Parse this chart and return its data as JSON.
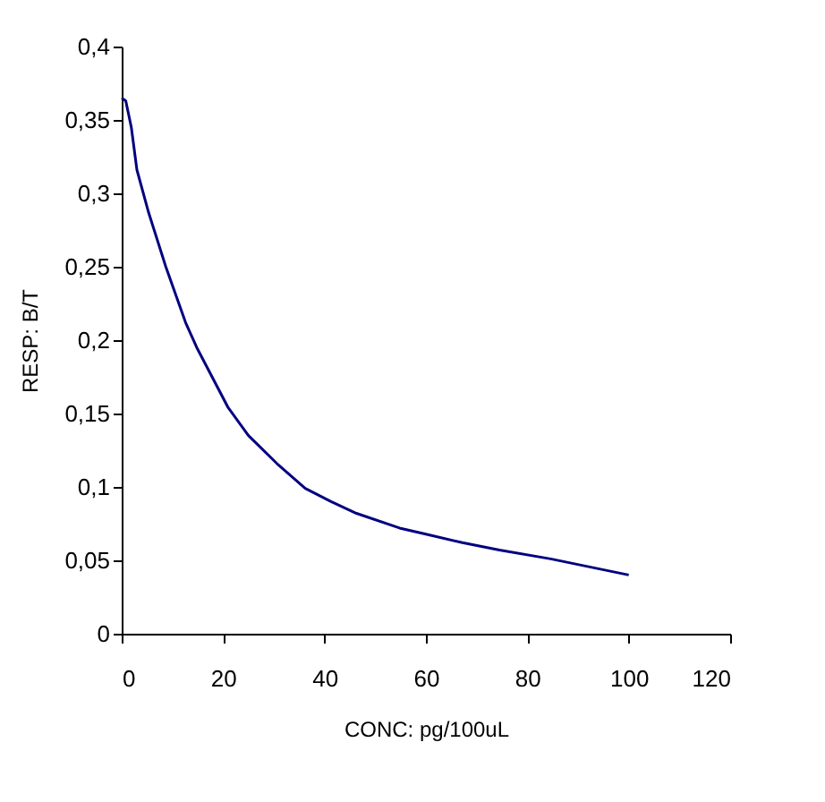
{
  "chart_data": {
    "type": "line",
    "xlabel": "CONC: pg/100uL",
    "ylabel": "RESP: B/T",
    "x": [
      0,
      0.8,
      1.9,
      3.0,
      5.3,
      8.7,
      12.6,
      14.8,
      21,
      25,
      30.6,
      36.2,
      41.3,
      46.3,
      54.8,
      59.8,
      67.2,
      74.5,
      84.6,
      100
    ],
    "series": [
      {
        "color": "#000080",
        "values": [
          0.365,
          0.363,
          0.345,
          0.316,
          0.287,
          0.25,
          0.212,
          0.195,
          0.154,
          0.135,
          0.116,
          0.099,
          0.09,
          0.082,
          0.072,
          0.068,
          0.062,
          0.057,
          0.051,
          0.04
        ]
      }
    ],
    "xlim": [
      0,
      120
    ],
    "xticks": [
      0,
      20,
      40,
      60,
      80,
      100,
      120
    ],
    "ylim": [
      0,
      0.4
    ],
    "yticks": [
      0,
      {
        "value": 0.05,
        "label": "0,05"
      },
      {
        "value": 0.1,
        "label": "0,1"
      },
      {
        "value": 0.15,
        "label": "0,15"
      },
      {
        "value": 0.2,
        "label": "0,2"
      },
      {
        "value": 0.25,
        "label": "0,25"
      },
      {
        "value": 0.3,
        "label": "0,3"
      },
      {
        "value": 0.35,
        "label": "0,35"
      },
      {
        "value": 0.4,
        "label": "0,4"
      }
    ],
    "grid": false,
    "marker": "none",
    "line_style": "solid"
  }
}
